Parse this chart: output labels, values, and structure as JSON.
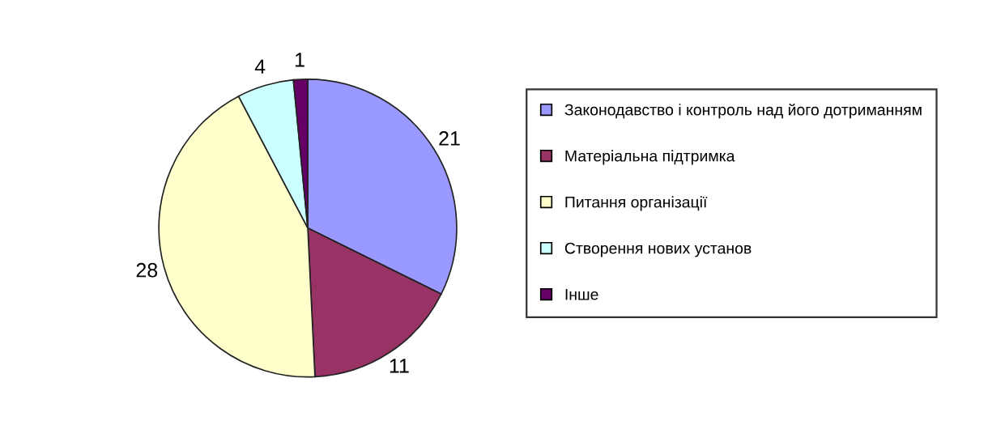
{
  "chart_data": {
    "type": "pie",
    "categories": [
      "Законодавство і контроль над його дотриманням",
      "Матеріальна підтримка",
      "Питання організації",
      "Створення нових установ",
      "Інше"
    ],
    "values": [
      21,
      11,
      28,
      4,
      1
    ],
    "colors": [
      "#9999ff",
      "#993366",
      "#ffffcc",
      "#ccffff",
      "#660066"
    ],
    "data_labels": true,
    "legend": "right"
  }
}
